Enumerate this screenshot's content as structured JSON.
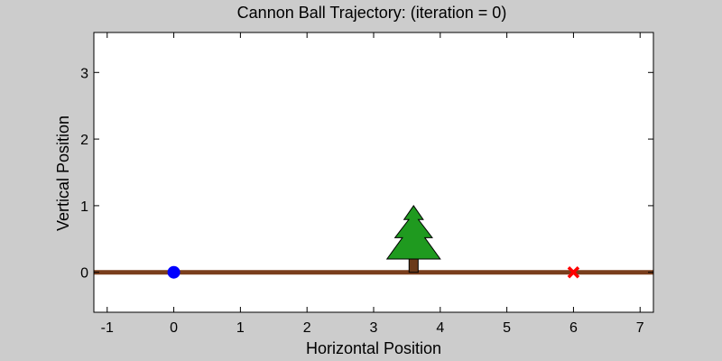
{
  "chart_data": {
    "type": "scatter",
    "title": "Cannon Ball Trajectory:   (iteration =  0)",
    "xlabel": "Horizontal Position",
    "ylabel": "Vertical Position",
    "xlim": [
      -1.2,
      7.2
    ],
    "ylim": [
      -0.6,
      3.6
    ],
    "x_ticks": [
      -1,
      0,
      1,
      2,
      3,
      4,
      5,
      6,
      7
    ],
    "y_ticks": [
      0,
      1,
      2,
      3
    ],
    "grid": false,
    "ground": {
      "y": 0,
      "color": "#7a3e1c"
    },
    "tree": {
      "x": 3.6,
      "height": 1.0,
      "half_width": 0.4,
      "foliage_color": "#1f9a1f",
      "trunk_color": "#6b3a1a"
    },
    "cannon_ball": {
      "x": 0,
      "y": 0,
      "color": "#0000ff"
    },
    "target": {
      "x": 6,
      "y": 0,
      "color": "#ff0000",
      "marker": "x-icon"
    }
  }
}
